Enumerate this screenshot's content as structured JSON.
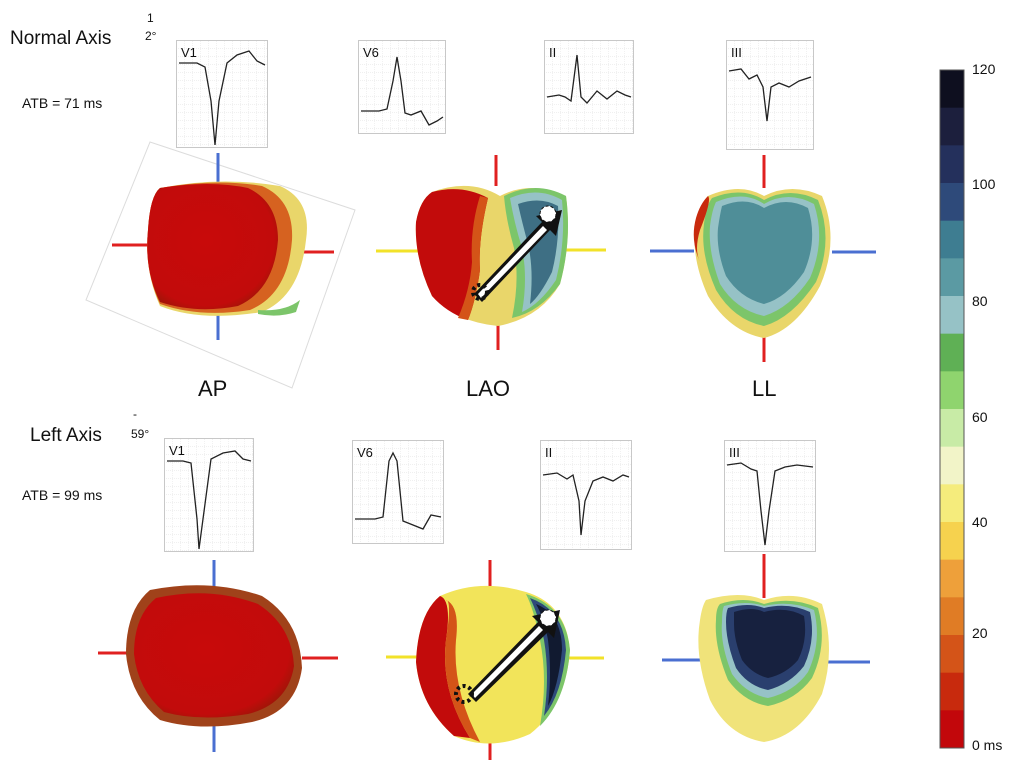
{
  "rows": [
    {
      "title": "Normal Axis",
      "axis_degree_top": "1",
      "axis_degree_bottom": "2°",
      "atb": "ATB = 71 ms",
      "leads": [
        "V1",
        "V6",
        "II",
        "III"
      ]
    },
    {
      "title": "Left Axis",
      "axis_degree_top": "-",
      "axis_degree_bottom": "59°",
      "atb": "ATB = 99 ms",
      "leads": [
        "V1",
        "V6",
        "II",
        "III"
      ]
    }
  ],
  "views": [
    "AP",
    "LAO",
    "LL"
  ],
  "colorbar": {
    "ticks": [
      "120",
      "100",
      "80",
      "60",
      "40",
      "20",
      "0 ms"
    ],
    "colors": [
      "#0e0f1f",
      "#1c1f3d",
      "#24305c",
      "#2e4a7a",
      "#3e7d91",
      "#5b9aa3",
      "#96c2c6",
      "#5fb055",
      "#8fd46e",
      "#c8eba6",
      "#f2f4c8",
      "#f5ec7c",
      "#f6d24e",
      "#eea03a",
      "#e07c25",
      "#d45418",
      "#c82a0d",
      "#c2070b"
    ]
  }
}
